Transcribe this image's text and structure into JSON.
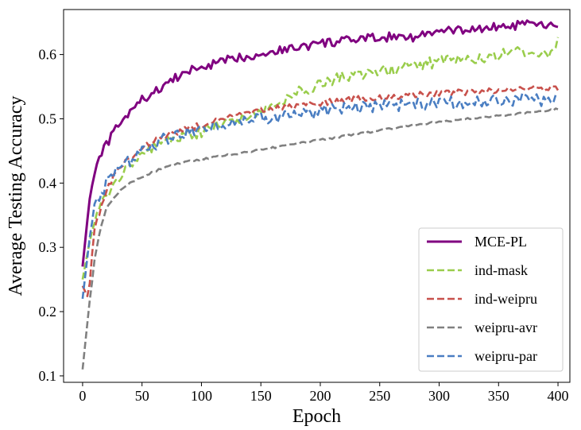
{
  "chart_data": {
    "type": "line",
    "title": "",
    "xlabel": "Epoch",
    "ylabel": "Average Testing Accuracy",
    "xlim": [
      -16,
      410
    ],
    "ylim": [
      0.09,
      0.67
    ],
    "xticks": [
      0,
      50,
      100,
      150,
      200,
      250,
      300,
      350,
      400
    ],
    "yticks": [
      0.1,
      0.2,
      0.3,
      0.4,
      0.5,
      0.6
    ],
    "xtick_labels": [
      "0",
      "50",
      "100",
      "150",
      "200",
      "250",
      "300",
      "350",
      "400"
    ],
    "ytick_labels": [
      "0.1",
      "0.2",
      "0.3",
      "0.4",
      "0.5",
      "0.6"
    ],
    "grid": false,
    "legend_position": "lower-right",
    "legend": [
      "MCE-PL",
      "ind-mask",
      "ind-weipru",
      "weipru-avr",
      "weipru-par"
    ],
    "series": [
      {
        "name": "MCE-PL",
        "color": "#800080",
        "style": "solid",
        "x": [
          0,
          5,
          10,
          15,
          20,
          30,
          40,
          50,
          60,
          70,
          80,
          90,
          100,
          110,
          120,
          130,
          140,
          150,
          160,
          170,
          180,
          190,
          200,
          210,
          220,
          230,
          240,
          250,
          260,
          270,
          280,
          290,
          300,
          310,
          320,
          330,
          340,
          350,
          360,
          370,
          380,
          390,
          400
        ],
        "y": [
          0.27,
          0.36,
          0.42,
          0.44,
          0.46,
          0.49,
          0.51,
          0.53,
          0.54,
          0.555,
          0.565,
          0.575,
          0.58,
          0.585,
          0.59,
          0.595,
          0.598,
          0.601,
          0.605,
          0.608,
          0.611,
          0.614,
          0.617,
          0.619,
          0.621,
          0.623,
          0.625,
          0.626,
          0.628,
          0.63,
          0.626,
          0.633,
          0.635,
          0.637,
          0.638,
          0.64,
          0.641,
          0.643,
          0.644,
          0.646,
          0.647,
          0.645,
          0.64
        ]
      },
      {
        "name": "ind-mask",
        "color": "#9ACD4C",
        "style": "dashed",
        "x": [
          0,
          5,
          10,
          15,
          20,
          30,
          40,
          50,
          60,
          70,
          80,
          90,
          100,
          110,
          120,
          130,
          140,
          150,
          160,
          170,
          180,
          190,
          200,
          210,
          220,
          230,
          240,
          250,
          260,
          270,
          280,
          290,
          300,
          310,
          320,
          330,
          340,
          350,
          360,
          370,
          380,
          390,
          400
        ],
        "y": [
          0.25,
          0.3,
          0.34,
          0.36,
          0.38,
          0.41,
          0.43,
          0.445,
          0.455,
          0.465,
          0.47,
          0.475,
          0.48,
          0.49,
          0.495,
          0.5,
          0.505,
          0.51,
          0.52,
          0.53,
          0.54,
          0.548,
          0.555,
          0.56,
          0.565,
          0.568,
          0.571,
          0.574,
          0.577,
          0.58,
          0.583,
          0.586,
          0.589,
          0.591,
          0.593,
          0.595,
          0.597,
          0.6,
          0.602,
          0.604,
          0.606,
          0.6,
          0.62
        ]
      },
      {
        "name": "ind-weipru",
        "color": "#C8514C",
        "style": "dashed",
        "x": [
          0,
          5,
          10,
          15,
          20,
          30,
          40,
          50,
          60,
          70,
          80,
          90,
          100,
          110,
          120,
          130,
          140,
          150,
          160,
          170,
          180,
          190,
          200,
          210,
          220,
          230,
          240,
          250,
          260,
          270,
          280,
          290,
          300,
          310,
          320,
          330,
          340,
          350,
          360,
          370,
          380,
          390,
          400
        ],
        "y": [
          0.24,
          0.22,
          0.33,
          0.36,
          0.39,
          0.42,
          0.44,
          0.455,
          0.465,
          0.475,
          0.48,
          0.485,
          0.49,
          0.495,
          0.5,
          0.505,
          0.508,
          0.512,
          0.515,
          0.518,
          0.52,
          0.523,
          0.525,
          0.527,
          0.529,
          0.531,
          0.532,
          0.534,
          0.535,
          0.536,
          0.537,
          0.538,
          0.539,
          0.54,
          0.541,
          0.542,
          0.543,
          0.544,
          0.545,
          0.546,
          0.547,
          0.548,
          0.549
        ]
      },
      {
        "name": "weipru-avr",
        "color": "#808080",
        "style": "dashed",
        "x": [
          0,
          5,
          10,
          15,
          20,
          30,
          40,
          50,
          60,
          70,
          80,
          90,
          100,
          110,
          120,
          130,
          140,
          150,
          160,
          170,
          180,
          190,
          200,
          210,
          220,
          230,
          240,
          250,
          260,
          270,
          280,
          290,
          300,
          310,
          320,
          330,
          340,
          350,
          360,
          370,
          380,
          390,
          400
        ],
        "y": [
          0.11,
          0.2,
          0.28,
          0.33,
          0.36,
          0.385,
          0.4,
          0.41,
          0.418,
          0.425,
          0.43,
          0.434,
          0.437,
          0.44,
          0.443,
          0.446,
          0.449,
          0.452,
          0.455,
          0.458,
          0.461,
          0.464,
          0.467,
          0.47,
          0.473,
          0.476,
          0.479,
          0.482,
          0.485,
          0.488,
          0.491,
          0.493,
          0.495,
          0.497,
          0.499,
          0.501,
          0.503,
          0.505,
          0.507,
          0.509,
          0.511,
          0.513,
          0.515
        ]
      },
      {
        "name": "weipru-par",
        "color": "#4A7EC2",
        "style": "dashed",
        "x": [
          0,
          5,
          10,
          15,
          20,
          30,
          40,
          50,
          60,
          70,
          80,
          90,
          100,
          110,
          120,
          130,
          140,
          150,
          160,
          170,
          180,
          190,
          200,
          210,
          220,
          230,
          240,
          250,
          260,
          270,
          280,
          290,
          300,
          310,
          320,
          330,
          340,
          350,
          360,
          370,
          380,
          390,
          400
        ],
        "y": [
          0.22,
          0.3,
          0.36,
          0.38,
          0.4,
          0.42,
          0.435,
          0.45,
          0.46,
          0.47,
          0.475,
          0.48,
          0.485,
          0.49,
          0.493,
          0.496,
          0.499,
          0.5,
          0.503,
          0.505,
          0.507,
          0.509,
          0.511,
          0.513,
          0.515,
          0.516,
          0.518,
          0.519,
          0.52,
          0.521,
          0.522,
          0.523,
          0.524,
          0.525,
          0.526,
          0.527,
          0.528,
          0.529,
          0.53,
          0.531,
          0.532,
          0.525,
          0.53
        ]
      }
    ]
  }
}
